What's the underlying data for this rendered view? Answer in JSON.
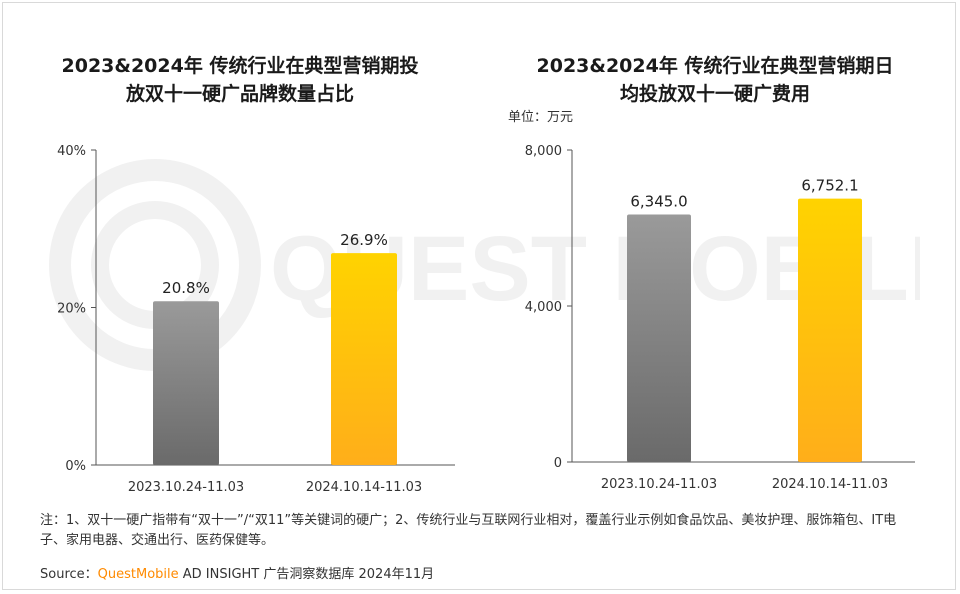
{
  "note": "注：1、双十一硬广指带有“双十一”/“双11”等关键词的硬广；2、传统行业与互联网行业相对，覆盖行业示例如食品饮品、美妆护理、服饰箱包、IT电子、家用电器、交通出行、医药保健等。",
  "source": {
    "prefix": "Source：",
    "brand": "QuestMobile",
    "suffix": " AD INSIGHT 广告洞察数据库 2024年11月"
  },
  "watermark_text": "QUEST MOBILE",
  "colors": {
    "gray_top": "#9a9a9a",
    "gray_bottom": "#6a6a6a",
    "yellow_top": "#ffd300",
    "yellow_bottom": "#ffae1a",
    "brand": "#ff8a00"
  },
  "chart_data": [
    {
      "type": "bar",
      "title_line1": "2023&2024年 传统行业在典型营销期投",
      "title_line2": "放双十一硬广品牌数量占比",
      "categories": [
        "2023.10.24-11.03",
        "2024.10.14-11.03"
      ],
      "values": [
        20.8,
        26.9
      ],
      "value_labels": [
        "20.8%",
        "26.9%"
      ],
      "ylim": [
        0,
        40
      ],
      "yticks": [
        0,
        20,
        40
      ],
      "ytick_labels": [
        "0%",
        "20%",
        "40%"
      ],
      "grid": false,
      "legend": "none"
    },
    {
      "type": "bar",
      "title_line1": "2023&2024年 传统行业在典型营销期日",
      "title_line2": "均投放双十一硬广费用",
      "unit": "单位：万元",
      "categories": [
        "2023.10.24-11.03",
        "2024.10.14-11.03"
      ],
      "values": [
        6345.0,
        6752.1
      ],
      "value_labels": [
        "6,345.0",
        "6,752.1"
      ],
      "ylim": [
        0,
        8000
      ],
      "yticks": [
        0,
        4000,
        8000
      ],
      "ytick_labels": [
        "0",
        "4,000",
        "8,000"
      ],
      "grid": false,
      "legend": "none"
    }
  ]
}
